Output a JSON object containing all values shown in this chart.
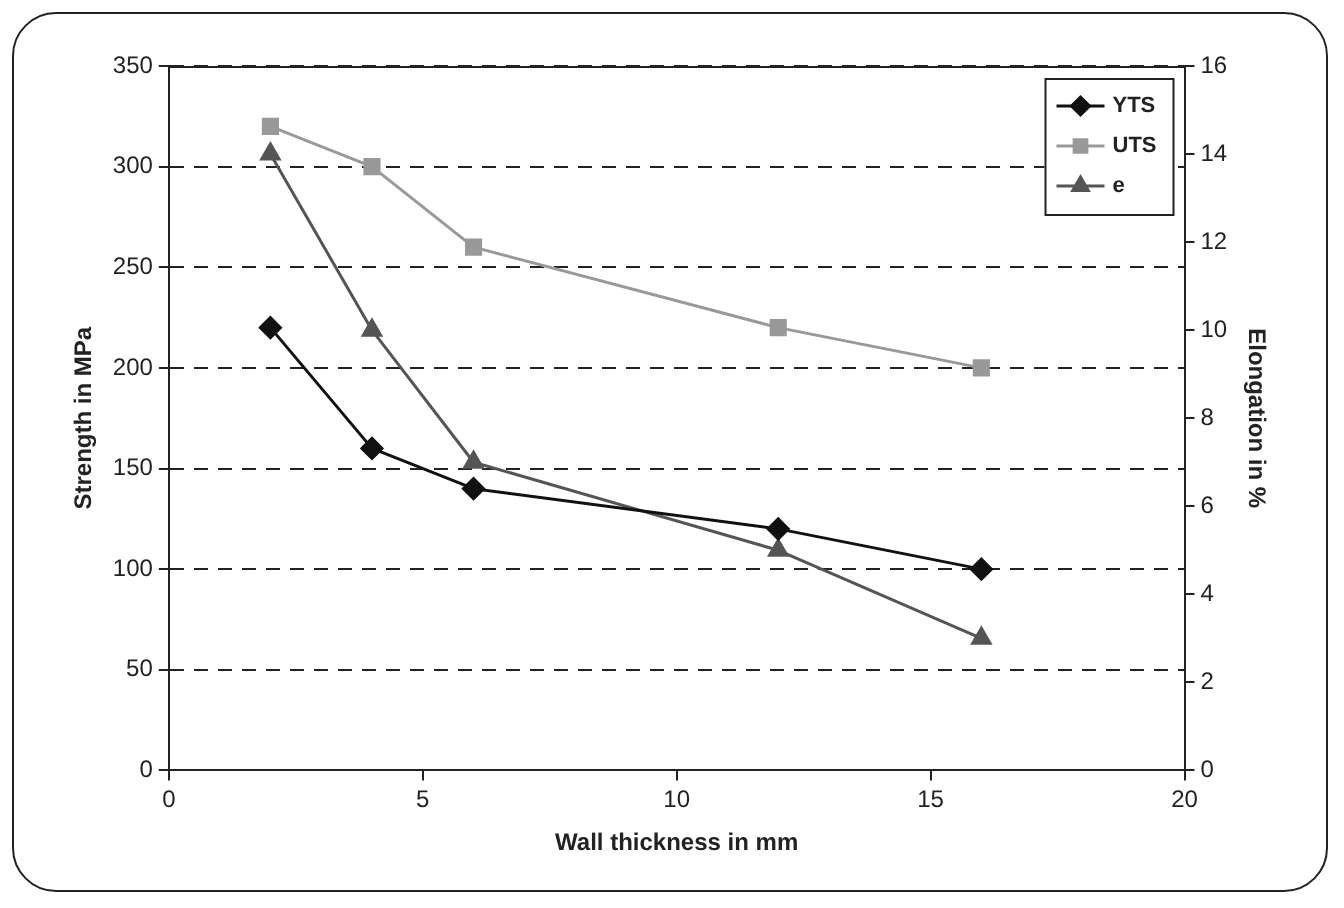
{
  "chart_data": {
    "type": "line",
    "xlabel": "Wall thickness in mm",
    "ylabel": "Strength in MPa",
    "y2label": "Elongation in %",
    "x": [
      2,
      4,
      6,
      12,
      16
    ],
    "series": [
      {
        "name": "YTS",
        "color": "#111111",
        "marker": "diamond",
        "values": [
          220,
          160,
          140,
          120,
          100
        ]
      },
      {
        "name": "UTS",
        "color": "#999999",
        "marker": "square",
        "values": [
          320,
          300,
          260,
          220,
          200
        ]
      },
      {
        "name": "e",
        "color": "#555555",
        "marker": "triangle",
        "axis": "y2",
        "values": [
          14,
          10,
          7,
          5,
          3
        ]
      }
    ],
    "xlim": [
      0,
      20
    ],
    "xticks": [
      0,
      5,
      10,
      15,
      20
    ],
    "ylim": [
      0,
      350
    ],
    "yticks": [
      0,
      50,
      100,
      150,
      200,
      250,
      300,
      350
    ],
    "y2lim": [
      0,
      16
    ],
    "y2ticks": [
      0,
      2,
      4,
      6,
      8,
      10,
      12,
      14,
      16
    ],
    "grid": "y",
    "line_style": "solid",
    "legend": "top right"
  }
}
